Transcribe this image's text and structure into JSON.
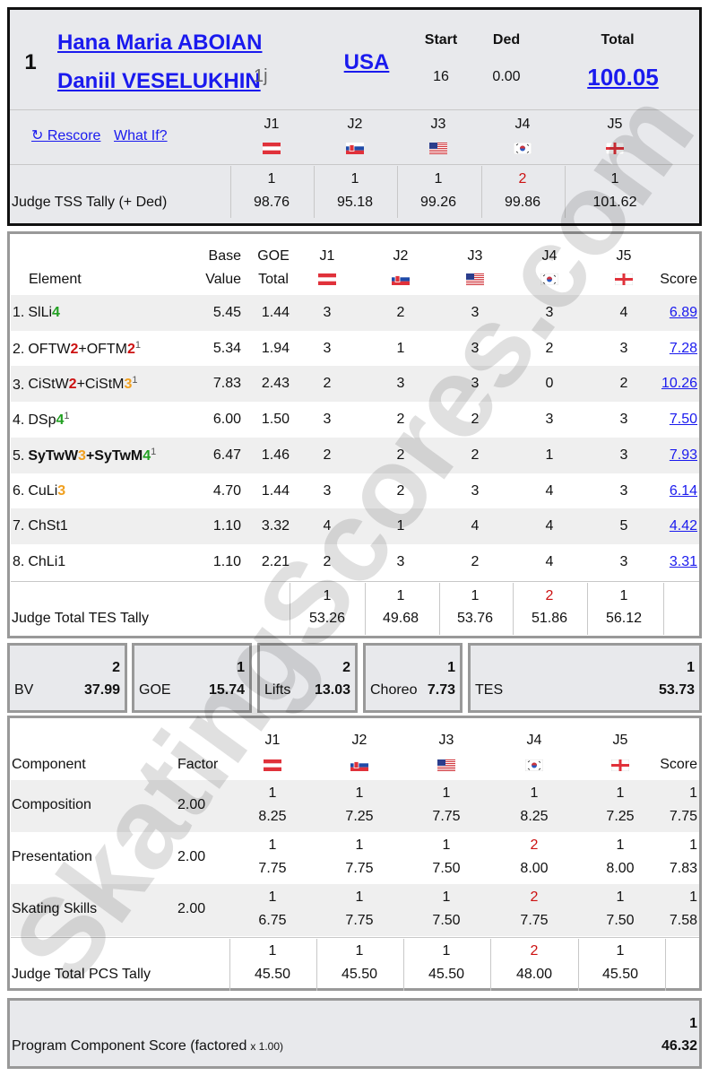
{
  "watermark": "SkatingScores.com",
  "alert_color": "#cc1111",
  "judges": [
    "J1",
    "J2",
    "J3",
    "J4",
    "J5"
  ],
  "header": {
    "rank": "1",
    "skaters": [
      "Hana Maria ABOIAN",
      "Daniil VESELUKHIN"
    ],
    "skater_note": "1j",
    "country": "USA",
    "start": {
      "label": "Start",
      "value": "16"
    },
    "deductions": {
      "label": "Ded",
      "value": "0.00"
    },
    "total": {
      "label": "Total",
      "value": "100.05"
    },
    "links": [
      "↻ Rescore",
      "What If?"
    ],
    "tally": {
      "label": "Judge TSS Tally (+ Ded)",
      "ranks": [
        1,
        1,
        1,
        2,
        1
      ],
      "scores": [
        "98.76",
        "95.18",
        "99.26",
        "99.86",
        "101.62"
      ]
    }
  },
  "elements": {
    "headers": {
      "element": "Element",
      "base": [
        "Base",
        "Value"
      ],
      "goe": [
        "GOE",
        "Total"
      ],
      "score": "Score"
    },
    "rows": [
      {
        "no": "1.",
        "parts": [
          {
            "t": "SlLi"
          },
          {
            "t": "4",
            "c": "#22a022"
          }
        ],
        "base": "5.45",
        "goe": "1.44",
        "judges": [
          3,
          2,
          3,
          3,
          4
        ],
        "score": "6.89"
      },
      {
        "no": "2.",
        "parts": [
          {
            "t": "OFTW"
          },
          {
            "t": "2",
            "c": "#cc1111"
          },
          {
            "t": "+OFTM"
          },
          {
            "t": "2",
            "c": "#cc1111"
          }
        ],
        "note": "1",
        "base": "5.34",
        "goe": "1.94",
        "judges": [
          3,
          1,
          3,
          2,
          3
        ],
        "score": "7.28"
      },
      {
        "no": "3.",
        "parts": [
          {
            "t": "CiStW"
          },
          {
            "t": "2",
            "c": "#cc1111"
          },
          {
            "t": "+CiStM"
          },
          {
            "t": "3",
            "c": "#f0a020"
          }
        ],
        "note": "1",
        "base": "7.83",
        "goe": "2.43",
        "judges": [
          2,
          3,
          3,
          0,
          2
        ],
        "score": "10.26"
      },
      {
        "no": "4.",
        "parts": [
          {
            "t": "DSp"
          },
          {
            "t": "4",
            "c": "#22a022"
          }
        ],
        "note": "1",
        "base": "6.00",
        "goe": "1.50",
        "judges": [
          3,
          2,
          2,
          3,
          3
        ],
        "score": "7.50"
      },
      {
        "no": "5.",
        "parts": [
          {
            "t": "SyTwW"
          },
          {
            "t": "3",
            "c": "#f0a020"
          },
          {
            "t": "+SyTwM"
          },
          {
            "t": "4",
            "c": "#22a022"
          }
        ],
        "note": "1",
        "bold": true,
        "base": "6.47",
        "goe": "1.46",
        "judges": [
          2,
          2,
          2,
          1,
          3
        ],
        "score": "7.93"
      },
      {
        "no": "6.",
        "parts": [
          {
            "t": "CuLi"
          },
          {
            "t": "3",
            "c": "#f0a020"
          }
        ],
        "base": "4.70",
        "goe": "1.44",
        "judges": [
          3,
          2,
          3,
          4,
          3
        ],
        "score": "6.14"
      },
      {
        "no": "7.",
        "parts": [
          {
            "t": "ChSt1"
          }
        ],
        "base": "1.10",
        "goe": "3.32",
        "judges": [
          4,
          1,
          4,
          4,
          5
        ],
        "score": "4.42"
      },
      {
        "no": "8.",
        "parts": [
          {
            "t": "ChLi1"
          }
        ],
        "base": "1.10",
        "goe": "2.21",
        "judges": [
          2,
          3,
          2,
          4,
          3
        ],
        "score": "3.31"
      }
    ],
    "tally": {
      "label": "Judge Total TES Tally",
      "ranks": [
        1,
        1,
        1,
        2,
        1
      ],
      "scores": [
        "53.26",
        "49.68",
        "53.76",
        "51.86",
        "56.12"
      ]
    }
  },
  "summary": [
    {
      "label": "BV",
      "rank": 2,
      "value": "37.99"
    },
    {
      "label": "GOE",
      "rank": 1,
      "value": "15.74"
    },
    {
      "label": "Lifts",
      "rank": 2,
      "value": "13.03"
    },
    {
      "label": "Choreo",
      "rank": 1,
      "value": "7.73"
    },
    {
      "label": "TES",
      "rank": 1,
      "value": "53.73"
    }
  ],
  "components": {
    "headers": {
      "component": "Component",
      "factor": "Factor",
      "score": "Score"
    },
    "rows": [
      {
        "name": "Composition",
        "factor": "2.00",
        "judges": [
          {
            "rank": 1,
            "score": "8.25"
          },
          {
            "rank": 1,
            "score": "7.25"
          },
          {
            "rank": 1,
            "score": "7.75"
          },
          {
            "rank": 1,
            "score": "8.25"
          },
          {
            "rank": 1,
            "score": "7.25"
          }
        ],
        "score": {
          "rank": 1,
          "value": "7.75"
        }
      },
      {
        "name": "Presentation",
        "factor": "2.00",
        "judges": [
          {
            "rank": 1,
            "score": "7.75"
          },
          {
            "rank": 1,
            "score": "7.75"
          },
          {
            "rank": 1,
            "score": "7.50"
          },
          {
            "rank": 2,
            "score": "8.00"
          },
          {
            "rank": 1,
            "score": "8.00"
          }
        ],
        "score": {
          "rank": 1,
          "value": "7.83"
        }
      },
      {
        "name": "Skating Skills",
        "factor": "2.00",
        "judges": [
          {
            "rank": 1,
            "score": "6.75"
          },
          {
            "rank": 1,
            "score": "7.75"
          },
          {
            "rank": 1,
            "score": "7.50"
          },
          {
            "rank": 2,
            "score": "7.75"
          },
          {
            "rank": 1,
            "score": "7.50"
          }
        ],
        "score": {
          "rank": 1,
          "value": "7.58"
        }
      }
    ],
    "tally": {
      "label": "Judge Total PCS Tally",
      "ranks": [
        1,
        1,
        1,
        2,
        1
      ],
      "scores": [
        "45.50",
        "45.50",
        "45.50",
        "48.00",
        "45.50"
      ]
    }
  },
  "pcs": {
    "label": "Program Component Score (factored",
    "factor": "x 1.00)",
    "rank": 1,
    "value": "46.32"
  }
}
